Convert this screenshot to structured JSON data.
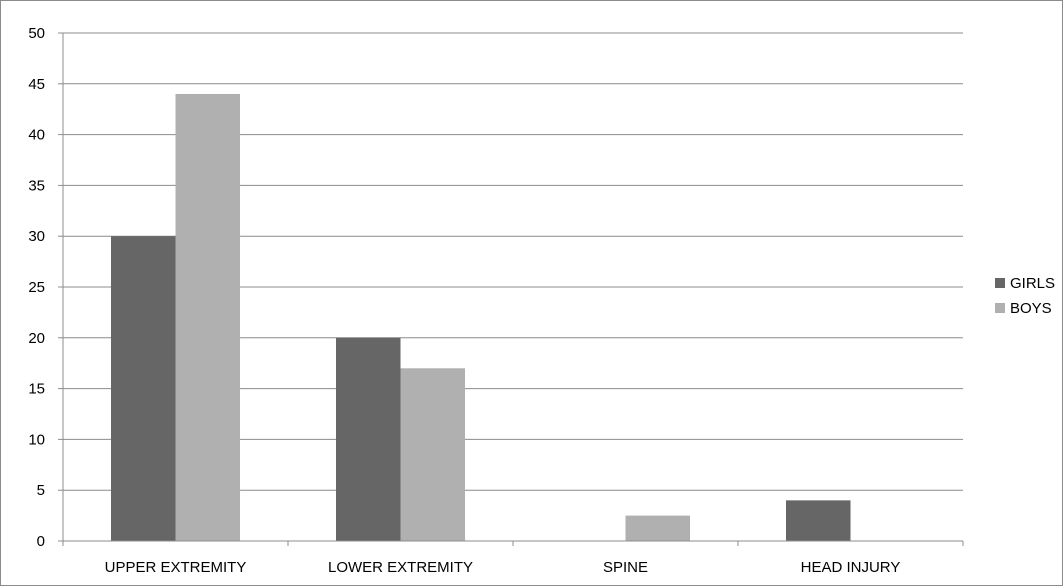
{
  "chart_data": {
    "type": "bar",
    "title": "",
    "xlabel": "",
    "ylabel": "",
    "categories": [
      "UPPER EXTREMITY",
      "LOWER EXTREMITY",
      "SPINE",
      "HEAD INJURY"
    ],
    "series": [
      {
        "name": "GIRLS",
        "color": "#666666",
        "values": [
          30,
          20,
          0,
          4
        ]
      },
      {
        "name": "BOYS",
        "color": "#b0b0b0",
        "values": [
          44,
          17,
          2.5,
          0
        ]
      }
    ],
    "ylim": [
      0,
      50
    ],
    "yticks": [
      "0",
      "5",
      "10",
      "15",
      "20",
      "25",
      "30",
      "35",
      "40",
      "45",
      "50"
    ],
    "grid": true,
    "legend_position": "right"
  }
}
